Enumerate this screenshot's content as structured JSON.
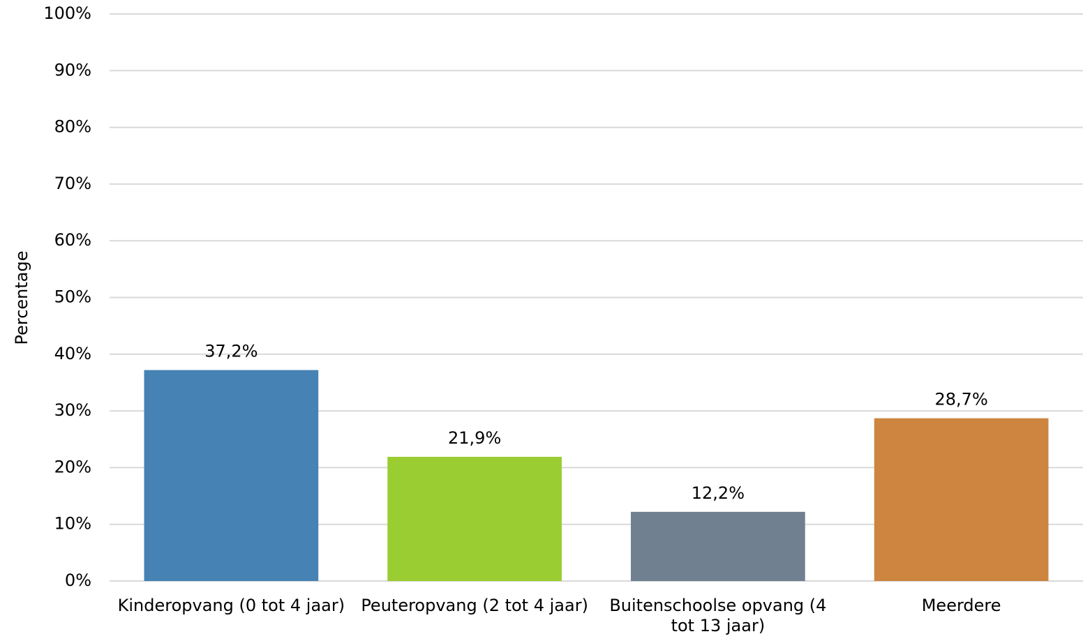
{
  "chart_data": {
    "type": "bar",
    "y_label": "Percentage",
    "categories": [
      "Kinderopvang (0 tot 4 jaar)",
      "Peuteropvang (2 tot 4 jaar)",
      "Buitenschoolse opvang (4 tot 13 jaar)",
      "Meerdere"
    ],
    "values": [
      37.2,
      21.9,
      12.2,
      28.7
    ],
    "value_labels": [
      "37,2%",
      "21,9%",
      "12,2%",
      "28,7%"
    ],
    "colors": [
      "#4682b4",
      "#9acd32",
      "#708090",
      "#cd853f"
    ],
    "ylim": [
      0,
      100
    ],
    "yticks": [
      {
        "value": 0,
        "label": "0%"
      },
      {
        "value": 10,
        "label": "10%"
      },
      {
        "value": 20,
        "label": "20%"
      },
      {
        "value": 30,
        "label": "30%"
      },
      {
        "value": 40,
        "label": "40%"
      },
      {
        "value": 50,
        "label": "50%"
      },
      {
        "value": 60,
        "label": "60%"
      },
      {
        "value": 70,
        "label": "70%"
      },
      {
        "value": 80,
        "label": "80%"
      },
      {
        "value": 90,
        "label": "90%"
      },
      {
        "value": 100,
        "label": "100%"
      }
    ],
    "grid": true
  }
}
